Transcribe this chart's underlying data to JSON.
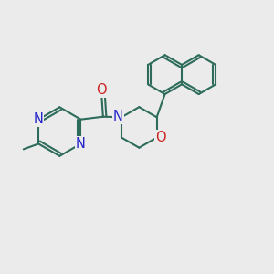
{
  "bg_color": "#ebebeb",
  "bond_color": "#2d6b5a",
  "N_color": "#2222cc",
  "O_color": "#cc2222",
  "line_width": 1.5,
  "font_size": 10.5,
  "xlim": [
    0.0,
    1.0
  ],
  "ylim": [
    0.0,
    1.0
  ]
}
